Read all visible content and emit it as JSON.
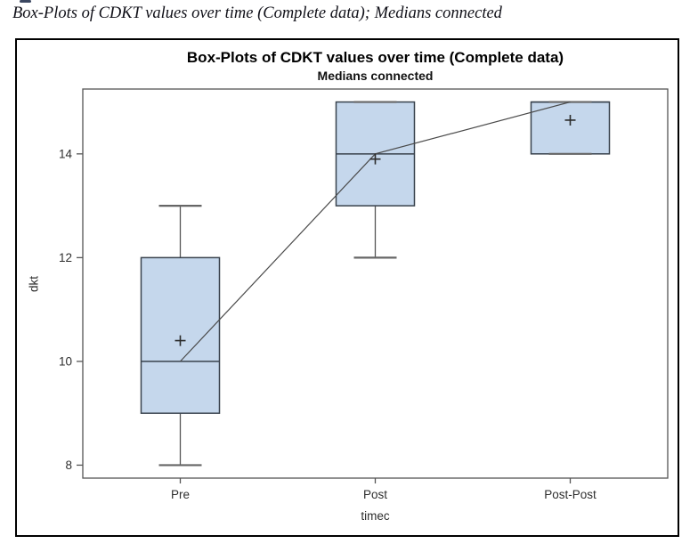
{
  "page": {
    "caption": "Box-Plots of CDKT values over time (Complete data); Medians connected"
  },
  "chart_data": {
    "type": "boxplot",
    "title": "Box-Plots of CDKT values over time (Complete data)",
    "subtitle": "Medians connected",
    "xlabel": "timec",
    "ylabel": "dkt",
    "categories": [
      "Pre",
      "Post",
      "Post-Post"
    ],
    "boxes": [
      {
        "category": "Pre",
        "min": 8,
        "q1": 9,
        "median": 10,
        "q3": 12,
        "max": 13,
        "mean": 10.4
      },
      {
        "category": "Post",
        "min": 12,
        "q1": 13,
        "median": 14,
        "q3": 15,
        "max": 15,
        "mean": 13.9
      },
      {
        "category": "Post-Post",
        "min": 14,
        "q1": 14,
        "median": 15,
        "q3": 15,
        "max": 15,
        "mean": 14.65
      }
    ],
    "connected_medians": [
      10,
      14,
      15
    ],
    "y_ticks": [
      8,
      10,
      12,
      14
    ],
    "ylim": [
      7.75,
      15.25
    ],
    "grid": false,
    "legend": null,
    "colors": {
      "box_fill": "#c5d7ec",
      "box_border": "#39424d",
      "whisker": "#555555",
      "cap": "#666666",
      "frame": "#555555",
      "connect_line": "#4a4a4a",
      "mean_marker": "#2b2b2b",
      "outer_border": "#000000"
    }
  }
}
